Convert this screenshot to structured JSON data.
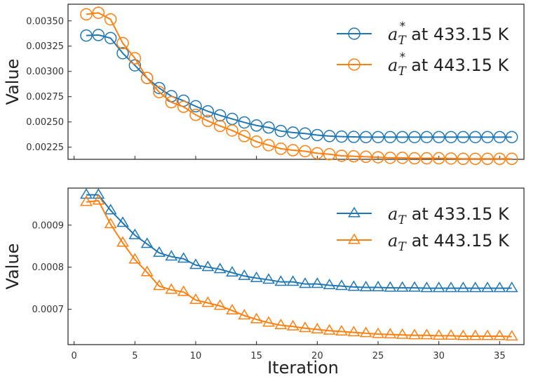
{
  "chart_data": [
    {
      "type": "line",
      "panel": "top",
      "ylabel": "Value",
      "xlim": [
        -0.5,
        37
      ],
      "ylim": [
        0.00213,
        0.003665
      ],
      "yticks": [
        0.00225,
        0.0025,
        0.00275,
        0.003,
        0.00325,
        0.0035
      ],
      "ytick_labels": [
        "0.00225",
        "0.00250",
        "0.00275",
        "0.00300",
        "0.00325",
        "0.00350"
      ],
      "marker": "circle",
      "legend_position": "top-right",
      "series": [
        {
          "name": "a_T* at 433.15 K",
          "legend_symbol": "a",
          "legend_subscript": "T",
          "legend_superscript": "*",
          "legend_suffix": "at 433.15 K",
          "color": "#1f77b4",
          "x": [
            1,
            2,
            3,
            4,
            5,
            6,
            7,
            8,
            9,
            10,
            11,
            12,
            13,
            14,
            15,
            16,
            17,
            18,
            19,
            20,
            21,
            22,
            23,
            24,
            25,
            26,
            27,
            28,
            29,
            30,
            31,
            32,
            33,
            34,
            35,
            36
          ],
          "values": [
            0.003355,
            0.00336,
            0.00333,
            0.00318,
            0.00306,
            0.002935,
            0.002835,
            0.002755,
            0.00271,
            0.002655,
            0.002605,
            0.002565,
            0.00253,
            0.002495,
            0.002465,
            0.002445,
            0.00241,
            0.002395,
            0.002385,
            0.00237,
            0.00236,
            0.002355,
            0.002352,
            0.00235,
            0.00235,
            0.00235,
            0.00235,
            0.00235,
            0.00235,
            0.00235,
            0.00235,
            0.00235,
            0.00235,
            0.00235,
            0.00235,
            0.00235
          ]
        },
        {
          "name": "a_T* at 443.15 K",
          "legend_symbol": "a",
          "legend_subscript": "T",
          "legend_superscript": "*",
          "legend_suffix": "at 443.15 K",
          "color": "#ff7f0e",
          "x": [
            1,
            2,
            3,
            4,
            5,
            6,
            7,
            8,
            9,
            10,
            11,
            12,
            13,
            14,
            15,
            16,
            17,
            18,
            19,
            20,
            21,
            22,
            23,
            24,
            25,
            26,
            27,
            28,
            29,
            30,
            31,
            32,
            33,
            34,
            35,
            36
          ],
          "values": [
            0.003565,
            0.00358,
            0.003515,
            0.00328,
            0.00313,
            0.002935,
            0.002795,
            0.002695,
            0.00265,
            0.00257,
            0.00251,
            0.00246,
            0.002415,
            0.00236,
            0.002305,
            0.00227,
            0.002235,
            0.00222,
            0.00221,
            0.00219,
            0.00218,
            0.002165,
            0.00216,
            0.002155,
            0.00215,
            0.002145,
            0.002145,
            0.00214,
            0.00214,
            0.00214,
            0.002138,
            0.002135,
            0.002135,
            0.002135,
            0.002135,
            0.002135
          ]
        }
      ]
    },
    {
      "type": "line",
      "panel": "bottom",
      "ylabel": "Value",
      "xlabel": "Iteration",
      "xlim": [
        -0.5,
        37
      ],
      "ylim": [
        0.000616,
        0.000988
      ],
      "xticks": [
        0,
        5,
        10,
        15,
        20,
        25,
        30,
        35
      ],
      "xtick_labels": [
        "0",
        "5",
        "10",
        "15",
        "20",
        "25",
        "30",
        "35"
      ],
      "yticks": [
        0.0007,
        0.0008,
        0.0009
      ],
      "ytick_labels": [
        "0.0007",
        "0.0008",
        "0.0009"
      ],
      "marker": "triangle",
      "legend_position": "top-right",
      "series": [
        {
          "name": "a_T at 433.15 K",
          "legend_symbol": "a",
          "legend_subscript": "T",
          "legend_superscript": "",
          "legend_suffix": "at 433.15 K",
          "color": "#1f77b4",
          "x": [
            1,
            2,
            3,
            4,
            5,
            6,
            7,
            8,
            9,
            10,
            11,
            12,
            13,
            14,
            15,
            16,
            17,
            18,
            19,
            20,
            21,
            22,
            23,
            24,
            25,
            26,
            27,
            28,
            29,
            30,
            31,
            32,
            33,
            34,
            35,
            36
          ],
          "values": [
            0.000972,
            0.000972,
            0.000935,
            0.000905,
            0.000876,
            0.000855,
            0.000834,
            0.000825,
            0.00082,
            0.000805,
            0.0008,
            0.000795,
            0.000787,
            0.000779,
            0.000774,
            0.00077,
            0.000765,
            0.000765,
            0.00076,
            0.00076,
            0.000757,
            0.000755,
            0.000753,
            0.000752,
            0.000752,
            0.000751,
            0.000751,
            0.000751,
            0.00075,
            0.00075,
            0.00075,
            0.00075,
            0.00075,
            0.00075,
            0.00075,
            0.00075
          ]
        },
        {
          "name": "a_T at 443.15 K",
          "legend_symbol": "a",
          "legend_subscript": "T",
          "legend_superscript": "",
          "legend_suffix": "at 443.15 K",
          "color": "#ff7f0e",
          "x": [
            1,
            2,
            3,
            4,
            5,
            6,
            7,
            8,
            9,
            10,
            11,
            12,
            13,
            14,
            15,
            16,
            17,
            18,
            19,
            20,
            21,
            22,
            23,
            24,
            25,
            26,
            27,
            28,
            29,
            30,
            31,
            32,
            33,
            34,
            35,
            36
          ],
          "values": [
            0.000955,
            0.000958,
            0.000902,
            0.000858,
            0.000818,
            0.000788,
            0.000755,
            0.000746,
            0.000741,
            0.000722,
            0.000715,
            0.000708,
            0.000697,
            0.000685,
            0.000676,
            0.000668,
            0.000662,
            0.000659,
            0.000655,
            0.000652,
            0.000649,
            0.000647,
            0.000645,
            0.000643,
            0.000641,
            0.00064,
            0.000639,
            0.000638,
            0.000638,
            0.000637,
            0.000637,
            0.000636,
            0.000636,
            0.000636,
            0.000636,
            0.000635
          ]
        }
      ]
    }
  ]
}
